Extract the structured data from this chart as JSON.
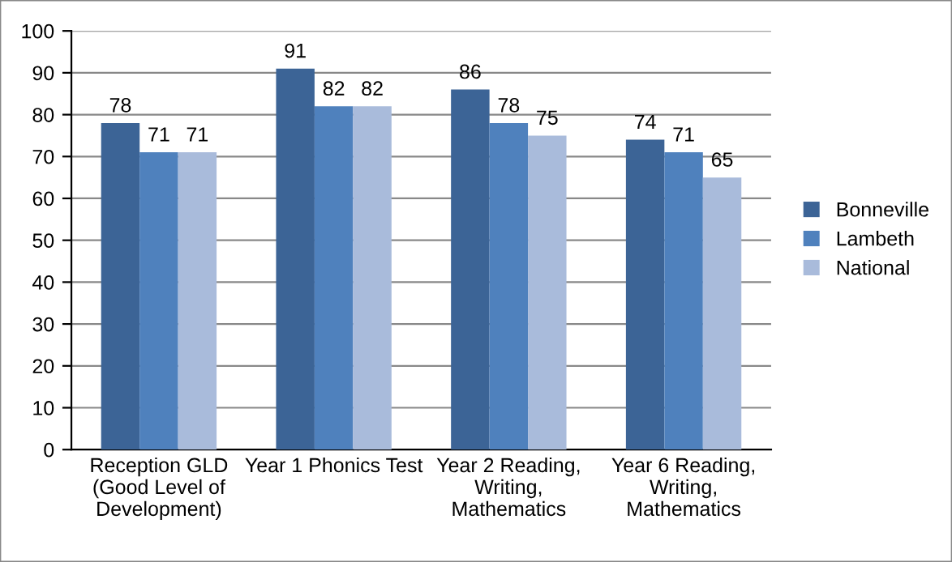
{
  "chart_data": {
    "type": "bar",
    "categories": [
      "Reception GLD\n(Good Level of\nDevelopment)",
      "Year 1 Phonics Test",
      "Year 2 Reading,\nWriting,\nMathematics",
      "Year 6 Reading,\nWriting,\nMathematics"
    ],
    "series": [
      {
        "name": "Bonneville",
        "color": "#3c6496",
        "values": [
          78,
          91,
          86,
          74
        ]
      },
      {
        "name": "Lambeth",
        "color": "#4f81bd",
        "values": [
          71,
          82,
          78,
          71
        ]
      },
      {
        "name": "National",
        "color": "#a9bbdb",
        "values": [
          71,
          82,
          75,
          65
        ]
      }
    ],
    "ylim": [
      0,
      100
    ],
    "yticks": [
      0,
      10,
      20,
      30,
      40,
      50,
      60,
      70,
      80,
      90,
      100
    ],
    "grid": "y",
    "legend": "right",
    "data_labels": true
  }
}
